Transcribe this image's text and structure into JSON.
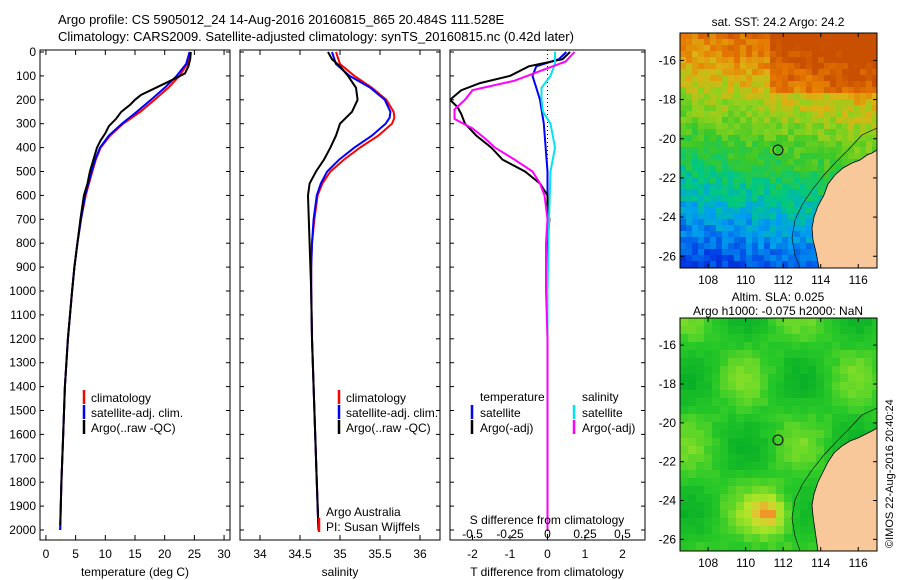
{
  "header": {
    "title_line1": "Argo profile: CS 5905012_24 14-Aug-2016 20160815_865 20.484S 111.528E",
    "title_line2": "Climatology: CARS2009. Satellite-adjusted climatology: synTS_20160815.nc (0.42d later)"
  },
  "colors": {
    "climatology": "#ff0000",
    "satellite": "#0000ff",
    "argo": "#000000",
    "sal_satellite": "#00e5ee",
    "sal_argo": "#ff00ff",
    "land": "#f8c89a"
  },
  "chart_data": [
    {
      "type": "line",
      "xlabel": "temperature (deg C)",
      "ylabel": "",
      "xlim": [
        -1,
        31
      ],
      "ylim": [
        2060,
        0
      ],
      "xticks": [
        0,
        5,
        10,
        15,
        20,
        25,
        30
      ],
      "yticks": [
        0,
        100,
        200,
        300,
        400,
        500,
        600,
        700,
        800,
        900,
        1000,
        1100,
        1200,
        1300,
        1400,
        1500,
        1600,
        1700,
        1800,
        1900,
        2000
      ],
      "legend": [
        "climatology",
        "satellite-adj. clim.",
        "Argo(..raw -QC)"
      ],
      "series": [
        {
          "name": "climatology",
          "depth": [
            0,
            50,
            100,
            150,
            200,
            250,
            300,
            350,
            400,
            450,
            500,
            600,
            700,
            800,
            900,
            1000,
            1200,
            1400,
            1600,
            1800,
            2000
          ],
          "values": [
            24.2,
            23.8,
            22.5,
            20.6,
            18.3,
            15.9,
            13.0,
            10.8,
            9.2,
            8.4,
            7.8,
            6.7,
            5.9,
            5.3,
            4.8,
            4.4,
            3.7,
            3.2,
            2.9,
            2.6,
            2.4
          ]
        },
        {
          "name": "satellite-adj. clim.",
          "depth": [
            0,
            50,
            100,
            150,
            200,
            250,
            300,
            350,
            400,
            450,
            500,
            600,
            700,
            800,
            900,
            1000,
            1200,
            1400,
            1600,
            1800,
            2000
          ],
          "values": [
            24.2,
            23.6,
            22.0,
            20.0,
            17.7,
            15.3,
            12.8,
            10.6,
            9.1,
            8.3,
            7.7,
            6.6,
            5.9,
            5.3,
            4.8,
            4.4,
            3.7,
            3.2,
            2.9,
            2.6,
            2.4
          ]
        },
        {
          "name": "Argo(..raw -QC)",
          "depth": [
            0,
            30,
            60,
            90,
            120,
            150,
            180,
            200,
            220,
            250,
            280,
            310,
            340,
            370,
            400,
            450,
            500,
            550,
            600,
            700,
            800,
            900,
            1000,
            1200,
            1400,
            1600,
            1800,
            1980
          ],
          "values": [
            24.4,
            24.3,
            24.0,
            23.4,
            21.0,
            18.5,
            16.0,
            15.0,
            14.2,
            12.7,
            11.8,
            10.6,
            10.0,
            9.2,
            8.6,
            8.0,
            7.4,
            7.0,
            6.4,
            5.8,
            5.3,
            4.8,
            4.4,
            3.7,
            3.2,
            2.9,
            2.6,
            2.4
          ]
        }
      ]
    },
    {
      "type": "line",
      "xlabel": "salinity",
      "ylabel": "",
      "xlim": [
        33.75,
        36.25
      ],
      "ylim": [
        2060,
        0
      ],
      "xticks": [
        34,
        34.5,
        35,
        35.5,
        36
      ],
      "legend": [
        "climatology",
        "satellite-adj. clim.",
        "Argo(..raw -QC)"
      ],
      "series": [
        {
          "name": "climatology",
          "depth": [
            0,
            50,
            100,
            150,
            200,
            250,
            275,
            300,
            350,
            400,
            450,
            500,
            550,
            600,
            650,
            700,
            800,
            900,
            1000,
            1200,
            1400,
            1600,
            1800,
            2000
          ],
          "values": [
            34.95,
            35.0,
            35.18,
            35.4,
            35.58,
            35.67,
            35.68,
            35.65,
            35.48,
            35.25,
            35.05,
            34.88,
            34.78,
            34.72,
            34.7,
            34.68,
            34.65,
            34.64,
            34.64,
            34.65,
            34.67,
            34.69,
            34.71,
            34.73
          ]
        },
        {
          "name": "satellite-adj. clim.",
          "depth": [
            0,
            50,
            100,
            150,
            200,
            250,
            275,
            300,
            350,
            400,
            450,
            500,
            550,
            600,
            650,
            700,
            800,
            900,
            1000,
            1200,
            1400,
            1600,
            1800,
            2000
          ],
          "values": [
            34.9,
            34.95,
            35.12,
            35.38,
            35.56,
            35.63,
            35.62,
            35.57,
            35.4,
            35.18,
            34.99,
            34.84,
            34.76,
            34.71,
            34.69,
            34.67,
            34.65,
            34.64,
            34.64,
            34.65,
            34.67,
            34.69,
            34.71,
            34.73
          ]
        },
        {
          "name": "Argo(..raw -QC)",
          "depth": [
            0,
            30,
            60,
            100,
            150,
            200,
            250,
            300,
            350,
            400,
            450,
            500,
            550,
            600,
            700,
            800,
            900,
            1000,
            1200,
            1400,
            1600,
            1800,
            1980
          ],
          "values": [
            34.85,
            34.9,
            35.0,
            35.1,
            35.2,
            35.22,
            35.15,
            35.0,
            34.95,
            34.88,
            34.8,
            34.7,
            34.62,
            34.6,
            34.61,
            34.62,
            34.63,
            34.64,
            34.65,
            34.67,
            34.69,
            34.71,
            34.73
          ]
        }
      ]
    },
    {
      "type": "line",
      "xlabel": "T difference from climatology",
      "xlabel_top": "S difference from climatology",
      "ylabel": "",
      "xlim": [
        -2.6,
        2.6
      ],
      "ylim": [
        2060,
        0
      ],
      "xticks": [
        -2,
        -1,
        0,
        1,
        2
      ],
      "xticks_s": [
        -0.5,
        -0.25,
        0,
        0.25,
        0.5
      ],
      "legend_groups": [
        "temperature",
        "salinity"
      ],
      "legend": [
        "satellite",
        "Argo(-adj)",
        "satellite",
        "Argo(-adj)"
      ],
      "series": [
        {
          "name": "temperature satellite",
          "depth": [
            0,
            30,
            60,
            100,
            150,
            200,
            300,
            500,
            800,
            1200,
            1600,
            2000
          ],
          "values": [
            0.5,
            0.3,
            -0.3,
            -0.4,
            -0.3,
            -0.2,
            -0.1,
            0,
            0,
            0,
            0,
            0
          ]
        },
        {
          "name": "temperature Argo(-adj)",
          "depth": [
            0,
            30,
            60,
            100,
            130,
            160,
            200,
            230,
            260,
            300,
            350,
            400,
            450,
            500,
            550,
            600,
            650,
            700,
            800,
            900,
            1000,
            1200,
            1400,
            1600,
            1800,
            1980
          ],
          "values": [
            0.6,
            0.4,
            -0.5,
            -1.0,
            -1.8,
            -2.3,
            -2.6,
            -2.4,
            -2.3,
            -2.2,
            -1.9,
            -1.5,
            -1.2,
            -0.6,
            -0.2,
            0,
            0,
            0.05,
            0,
            0,
            0,
            0,
            0,
            0,
            0,
            0
          ]
        },
        {
          "name": "salinity satellite",
          "depth": [
            0,
            50,
            100,
            150,
            200,
            250,
            300,
            400,
            500,
            700,
            1000,
            1400,
            2000
          ],
          "values": [
            0.05,
            0.05,
            0.02,
            -0.04,
            -0.04,
            -0.03,
            0.02,
            0.05,
            0.02,
            0.01,
            0,
            0,
            0
          ]
        },
        {
          "name": "salinity Argo(-adj)",
          "depth": [
            0,
            40,
            80,
            120,
            160,
            200,
            240,
            280,
            320,
            360,
            400,
            450,
            500,
            550,
            600,
            700,
            800,
            1000,
            1200,
            1600,
            2000
          ],
          "values": [
            0.18,
            0.12,
            -0.05,
            -0.22,
            -0.5,
            -0.55,
            -0.62,
            -0.62,
            -0.5,
            -0.42,
            -0.35,
            -0.22,
            -0.1,
            -0.05,
            -0.02,
            0,
            -0.01,
            -0.01,
            0,
            0,
            0
          ]
        }
      ]
    },
    {
      "type": "heatmap",
      "title": "sat. SST: 24.2  Argo: 24.2",
      "xlim": [
        106.5,
        117
      ],
      "ylim": [
        -26.6,
        -14.6
      ],
      "xticks": [
        108,
        110,
        112,
        114,
        116
      ],
      "yticks": [
        -16,
        -18,
        -20,
        -22,
        -24,
        -26
      ],
      "marker": {
        "lon": 111.5,
        "lat": -20.5
      }
    },
    {
      "type": "heatmap",
      "title": "Altim. SLA: 0.025",
      "subtitle": "Argo h1000: -0.075  h2000: NaN",
      "xlim": [
        106.5,
        117
      ],
      "ylim": [
        -26.6,
        -14.6
      ],
      "xticks": [
        108,
        110,
        112,
        114,
        116
      ],
      "yticks": [
        -16,
        -18,
        -20,
        -22,
        -24,
        -26
      ],
      "marker": {
        "lon": 111.5,
        "lat": -20.5
      }
    }
  ],
  "annotations": {
    "credit1": "Argo Australia",
    "credit2": "PI: Susan Wijffels",
    "stamp": "©IMOS 22-Aug-2016 20:40:24"
  }
}
